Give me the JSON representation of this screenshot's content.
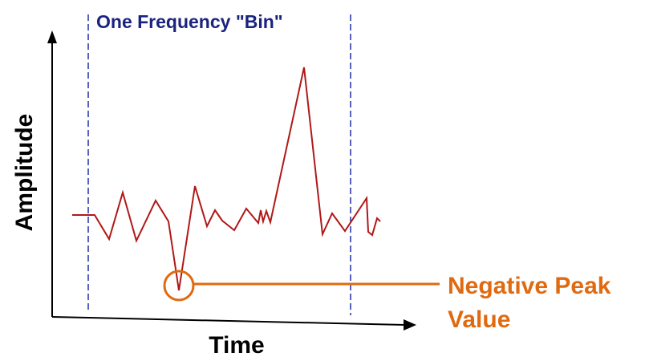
{
  "diagram": {
    "bin_label": "One Frequency \"Bin\"",
    "y_axis_label": "Amplitude",
    "x_axis_label": "Time",
    "callout_line1": "Negative Peak",
    "callout_line2": "Value"
  },
  "colors": {
    "signal": "#b01818",
    "bin_boundary": "#1f2fa8",
    "bin_label": "#1a237e",
    "callout": "#e06a10",
    "axis": "#000000"
  }
}
